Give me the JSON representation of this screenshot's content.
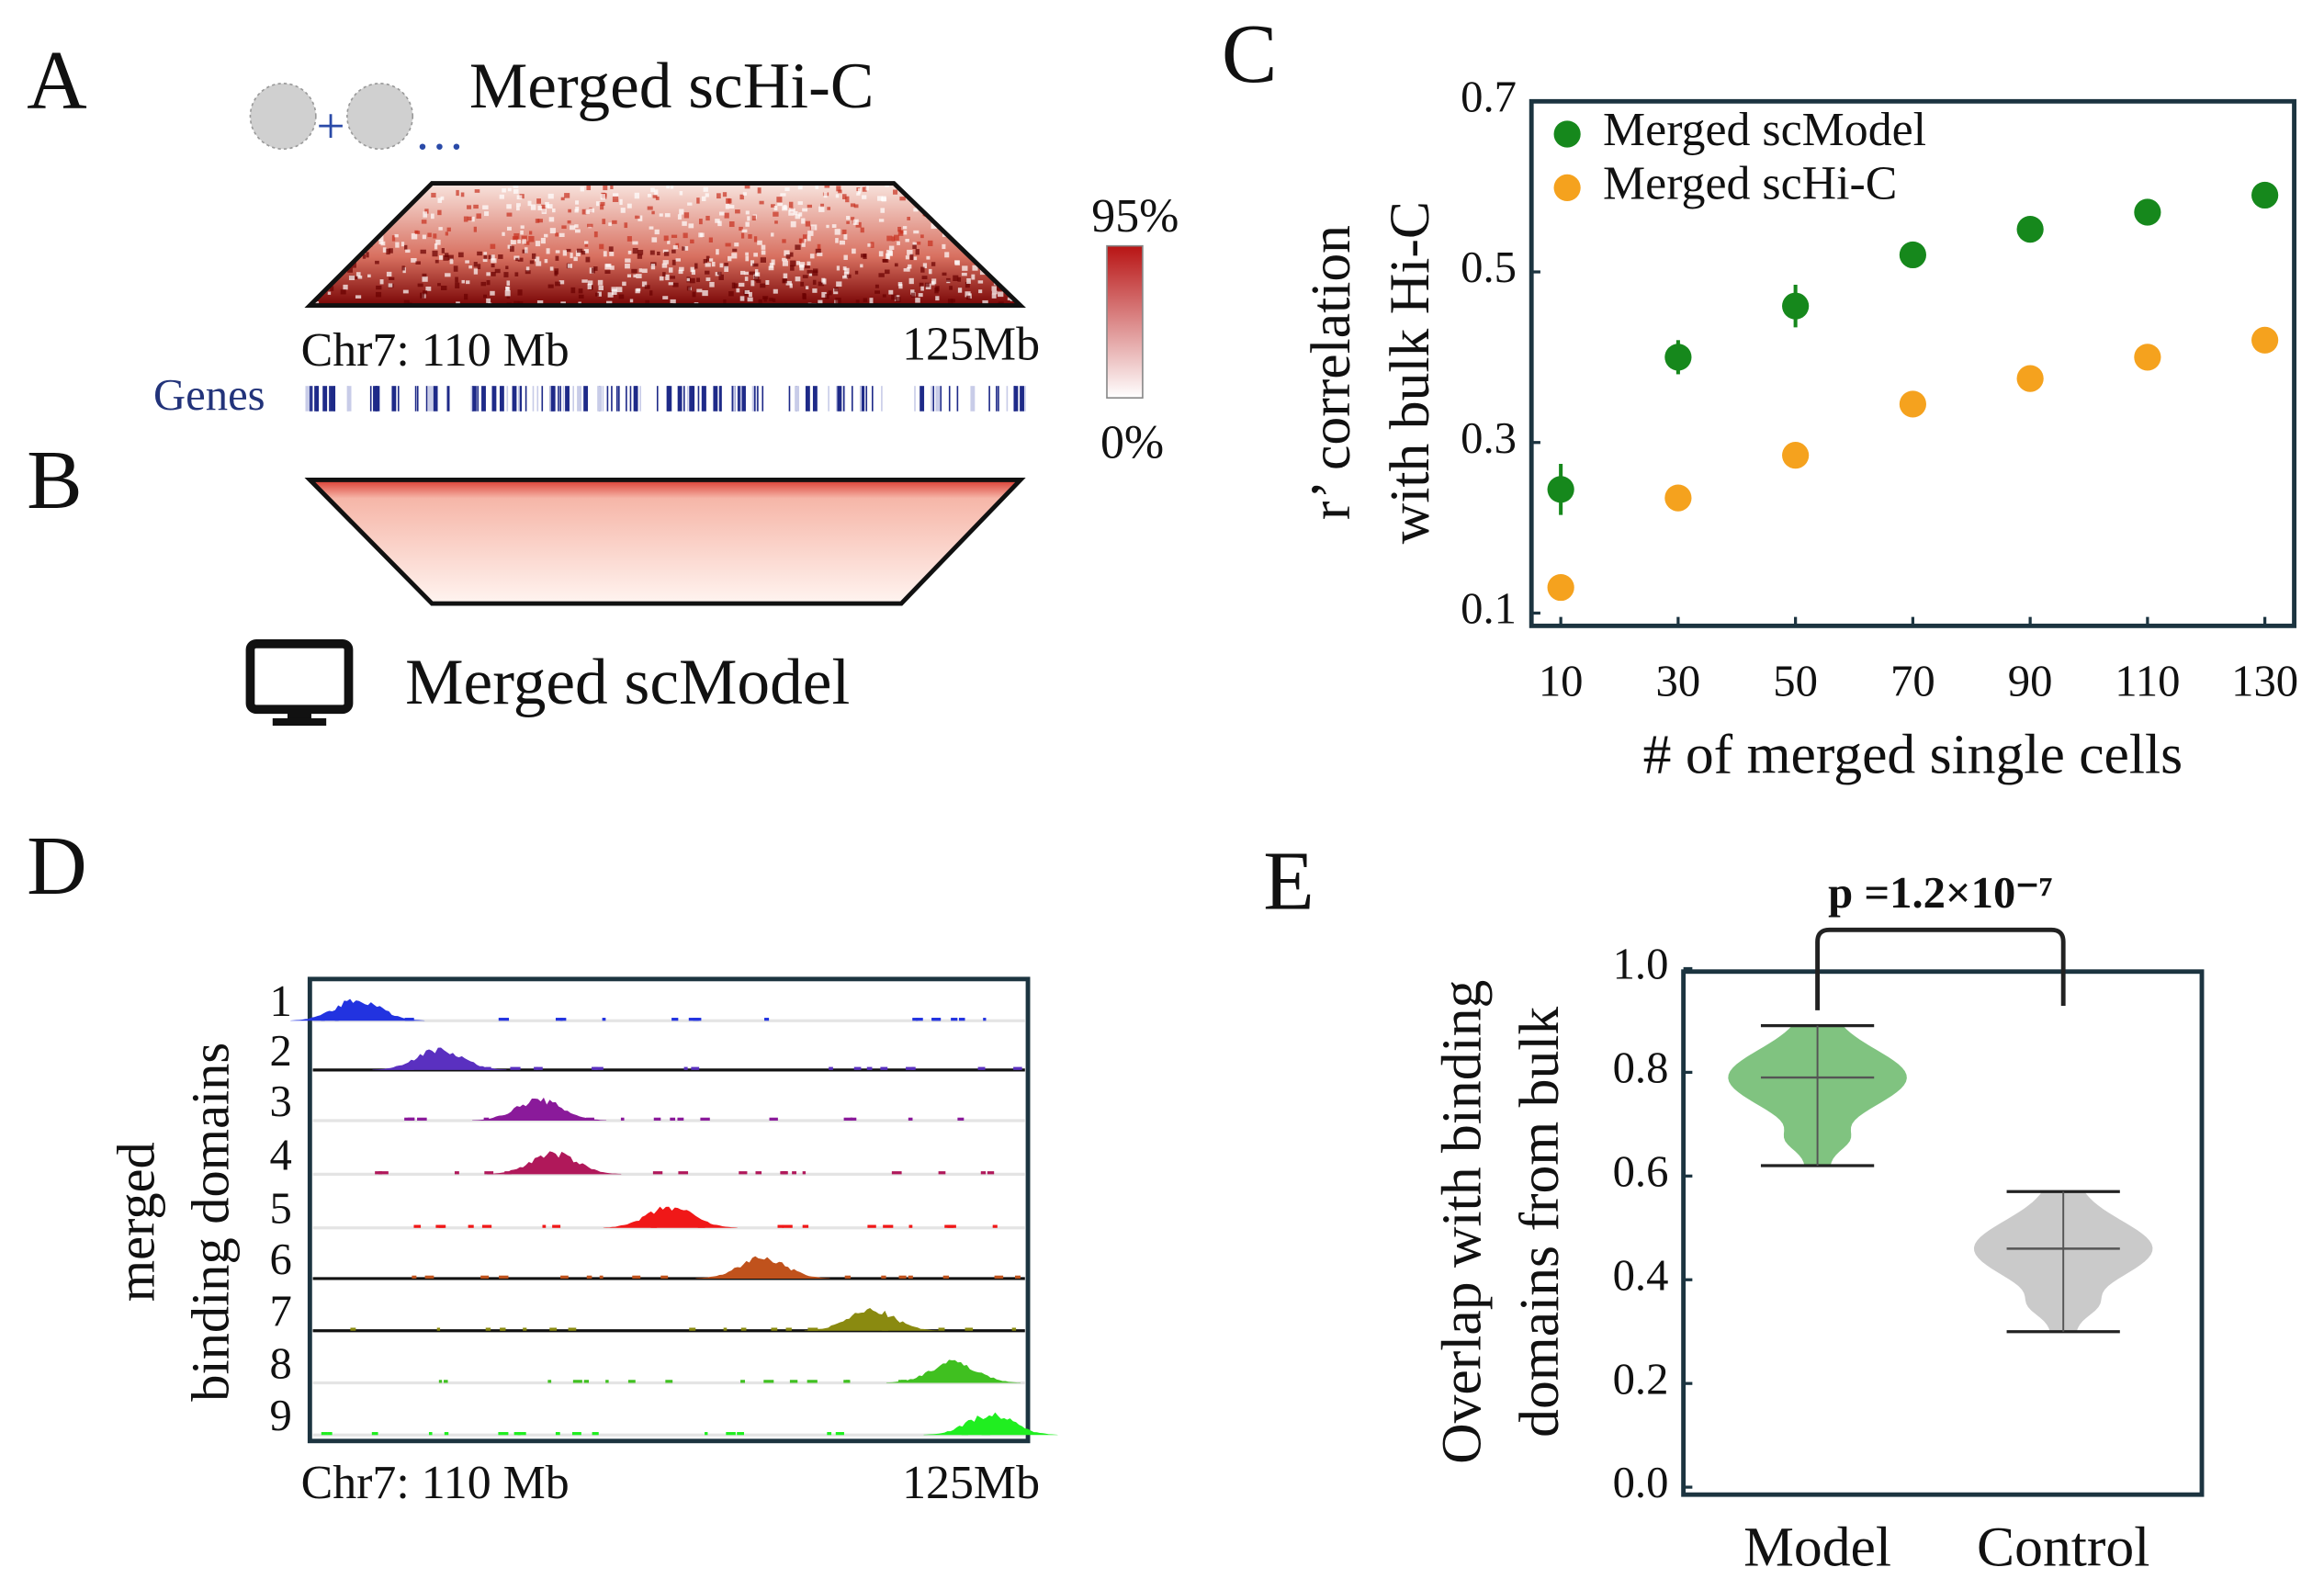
{
  "panels": {
    "A": {
      "letter": "A",
      "title": "Merged scHi-C",
      "icon_plus": "+",
      "icon_more": "…",
      "colorbar": {
        "max": "95%",
        "min": "0%"
      },
      "start": "Chr7: 110 Mb",
      "end": "125Mb",
      "genes": "Genes"
    },
    "B": {
      "letter": "B",
      "title": "Merged scModel"
    },
    "C": {
      "letter": "C"
    },
    "D": {
      "letter": "D",
      "ylabel": [
        "merged",
        "binding domains"
      ],
      "tracks": [
        "1",
        "2",
        "3",
        "4",
        "5",
        "6",
        "7",
        "8",
        "9"
      ],
      "start": "Chr7: 110 Mb",
      "end": "125Mb"
    },
    "E": {
      "letter": "E"
    }
  },
  "chart_data": [
    {
      "type": "scatter",
      "xlabel": "# of merged single cells",
      "ylabel": [
        "r’ correlation",
        "with bulk Hi-C"
      ],
      "xlim": [
        5,
        135
      ],
      "ylim": [
        0.085,
        0.7
      ],
      "xticks": [
        10,
        30,
        50,
        70,
        90,
        110,
        130
      ],
      "yticks": [
        0.1,
        0.3,
        0.5,
        0.7
      ],
      "legend": "upper left",
      "x": [
        10,
        30,
        50,
        70,
        90,
        110,
        130
      ],
      "series": [
        {
          "name": "Merged scModel",
          "color": "#16881c",
          "values": [
            0.245,
            0.4,
            0.46,
            0.52,
            0.55,
            0.57,
            0.59
          ],
          "errors": [
            0.03,
            0.02,
            0.025,
            0.01,
            0.01,
            0.01,
            0.01
          ]
        },
        {
          "name": "Merged scHi-C",
          "color": "#f5a21e",
          "values": [
            0.13,
            0.235,
            0.285,
            0.345,
            0.375,
            0.4,
            0.42
          ]
        }
      ]
    },
    {
      "type": "violin",
      "ylabel": [
        "Overlap with binding",
        "domains from bulk"
      ],
      "annotation": "p =1.2×10⁻⁷",
      "categories": [
        "Model",
        "Control"
      ],
      "colors": [
        "#72bd72",
        "#c4c4c4"
      ],
      "min": [
        0.62,
        0.3
      ],
      "max": [
        0.89,
        0.57
      ],
      "mean": [
        0.79,
        0.46
      ],
      "ylim": [
        0,
        1.0
      ],
      "yticks": [
        {
          "value": 0,
          "label": "0.0"
        },
        0.2,
        0.4,
        0.6,
        0.8,
        {
          "value": 1,
          "label": "1.0"
        }
      ]
    }
  ]
}
